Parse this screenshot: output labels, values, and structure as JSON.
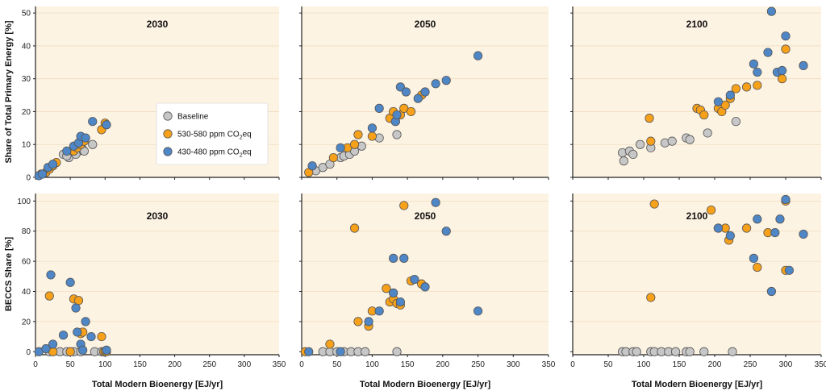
{
  "colors": {
    "panel_bg": "#fdf3e3",
    "gridline": "#f0dcc0",
    "baseline": "#c7c7c7",
    "co2_530_580": "#f7a11a",
    "co2_430_480": "#4f86c6",
    "marker_edge": "#555555"
  },
  "chart_data": {
    "type": "scatter",
    "xlabel": "Total Modern Bioenergy [EJ/yr]",
    "x_ticks": [
      0,
      50,
      100,
      150,
      200,
      250,
      300,
      350
    ],
    "xlim": [
      0,
      350
    ],
    "legend": {
      "entries": [
        {
          "series": "baseline",
          "text": "Baseline"
        },
        {
          "series": "co2_530_580",
          "text": "530-580 ppm CO",
          "sub": "2",
          "suffix": "eq"
        },
        {
          "series": "co2_430_480",
          "text": "430-480 ppm CO",
          "sub": "2",
          "suffix": "eq"
        }
      ]
    },
    "rows": [
      {
        "ylabel": "Share of Total Primary Energy [%]",
        "ylim": [
          0,
          52
        ],
        "y_ticks": [
          0,
          10,
          20,
          30,
          40,
          50
        ]
      },
      {
        "ylabel": "BECCS Share [%]",
        "ylim": [
          -2,
          105
        ],
        "y_ticks": [
          0,
          20,
          40,
          60,
          80,
          100
        ]
      }
    ],
    "panels": [
      {
        "row": 0,
        "col": 0,
        "title": "2030",
        "series": {
          "baseline": [
            [
              40,
              7
            ],
            [
              48,
              6
            ],
            [
              55,
              7.5
            ],
            [
              62,
              8
            ],
            [
              68,
              8.5
            ],
            [
              70,
              8
            ],
            [
              82,
              10
            ],
            [
              58,
              7
            ],
            [
              45,
              6.5
            ]
          ],
          "co2_530_580": [
            [
              8,
              1
            ],
            [
              15,
              1.5
            ],
            [
              20,
              2.5
            ],
            [
              25,
              3.5
            ],
            [
              30,
              4.5
            ],
            [
              55,
              8
            ],
            [
              60,
              9
            ],
            [
              65,
              10
            ],
            [
              70,
              11
            ],
            [
              95,
              14.5
            ],
            [
              100,
              16.5
            ]
          ],
          "co2_430_480": [
            [
              5,
              0.5
            ],
            [
              10,
              1
            ],
            [
              18,
              3
            ],
            [
              25,
              4
            ],
            [
              45,
              8
            ],
            [
              55,
              9.5
            ],
            [
              62,
              10.5
            ],
            [
              65,
              12.5
            ],
            [
              72,
              12
            ],
            [
              82,
              17
            ],
            [
              102,
              16
            ]
          ]
        }
      },
      {
        "row": 0,
        "col": 1,
        "title": "2050",
        "series": {
          "baseline": [
            [
              20,
              2
            ],
            [
              30,
              3
            ],
            [
              40,
              4
            ],
            [
              55,
              6
            ],
            [
              60,
              6.5
            ],
            [
              68,
              7
            ],
            [
              75,
              8
            ],
            [
              85,
              9.5
            ],
            [
              110,
              12
            ],
            [
              135,
              13
            ]
          ],
          "co2_530_580": [
            [
              10,
              1.5
            ],
            [
              45,
              6
            ],
            [
              65,
              9
            ],
            [
              75,
              10
            ],
            [
              80,
              13
            ],
            [
              100,
              12.5
            ],
            [
              125,
              18
            ],
            [
              130,
              20
            ],
            [
              133,
              17
            ],
            [
              140,
              19
            ],
            [
              145,
              21
            ],
            [
              155,
              20
            ],
            [
              170,
              25
            ]
          ],
          "co2_430_480": [
            [
              15,
              3.5
            ],
            [
              55,
              9
            ],
            [
              100,
              15
            ],
            [
              110,
              21
            ],
            [
              133,
              17
            ],
            [
              135,
              19
            ],
            [
              140,
              27.5
            ],
            [
              148,
              26
            ],
            [
              165,
              24
            ],
            [
              175,
              26
            ],
            [
              190,
              28.5
            ],
            [
              205,
              29.5
            ],
            [
              250,
              37
            ]
          ]
        }
      },
      {
        "row": 0,
        "col": 2,
        "title": "2100",
        "series": {
          "baseline": [
            [
              70,
              7.5
            ],
            [
              72,
              5
            ],
            [
              80,
              8
            ],
            [
              85,
              7
            ],
            [
              95,
              10
            ],
            [
              110,
              9
            ],
            [
              130,
              10.5
            ],
            [
              140,
              11
            ],
            [
              160,
              12
            ],
            [
              165,
              11.5
            ],
            [
              190,
              13.5
            ],
            [
              230,
              17
            ]
          ],
          "co2_530_580": [
            [
              108,
              18
            ],
            [
              110,
              11
            ],
            [
              175,
              21
            ],
            [
              180,
              20.5
            ],
            [
              185,
              19
            ],
            [
              205,
              21
            ],
            [
              210,
              20
            ],
            [
              215,
              22
            ],
            [
              222,
              24
            ],
            [
              230,
              27
            ],
            [
              245,
              27.5
            ],
            [
              260,
              28
            ],
            [
              295,
              30
            ],
            [
              300,
              39
            ]
          ],
          "co2_430_480": [
            [
              205,
              23
            ],
            [
              222,
              25
            ],
            [
              255,
              34.5
            ],
            [
              260,
              32
            ],
            [
              275,
              38
            ],
            [
              280,
              50.5
            ],
            [
              288,
              32
            ],
            [
              295,
              32.5
            ],
            [
              300,
              43
            ],
            [
              325,
              34
            ]
          ]
        }
      },
      {
        "row": 1,
        "col": 0,
        "title": "2030",
        "series": {
          "baseline": [
            [
              20,
              0
            ],
            [
              35,
              0
            ],
            [
              45,
              0
            ],
            [
              55,
              0
            ],
            [
              65,
              0
            ],
            [
              85,
              0
            ],
            [
              95,
              0
            ]
          ],
          "co2_530_580": [
            [
              20,
              37
            ],
            [
              25,
              0
            ],
            [
              50,
              0
            ],
            [
              55,
              35
            ],
            [
              62,
              34
            ],
            [
              65,
              12
            ],
            [
              68,
              13
            ],
            [
              95,
              10
            ],
            [
              98,
              0
            ],
            [
              100,
              0
            ],
            [
              102,
              0
            ]
          ],
          "co2_430_480": [
            [
              5,
              0
            ],
            [
              15,
              2
            ],
            [
              22,
              51
            ],
            [
              25,
              5
            ],
            [
              40,
              11
            ],
            [
              50,
              46
            ],
            [
              58,
              29
            ],
            [
              60,
              13
            ],
            [
              65,
              5
            ],
            [
              68,
              1
            ],
            [
              72,
              20
            ],
            [
              80,
              10
            ],
            [
              102,
              1
            ]
          ]
        }
      },
      {
        "row": 1,
        "col": 1,
        "title": "2050",
        "series": {
          "baseline": [
            [
              30,
              0
            ],
            [
              40,
              0
            ],
            [
              50,
              0
            ],
            [
              60,
              0
            ],
            [
              70,
              0
            ],
            [
              80,
              0
            ],
            [
              90,
              0
            ],
            [
              135,
              0
            ]
          ],
          "co2_530_580": [
            [
              5,
              0
            ],
            [
              40,
              5
            ],
            [
              75,
              82
            ],
            [
              80,
              20
            ],
            [
              95,
              17
            ],
            [
              100,
              27
            ],
            [
              120,
              42
            ],
            [
              125,
              33
            ],
            [
              130,
              35
            ],
            [
              135,
              32
            ],
            [
              140,
              31
            ],
            [
              145,
              97
            ],
            [
              155,
              47
            ],
            [
              170,
              45
            ]
          ],
          "co2_430_480": [
            [
              10,
              0
            ],
            [
              55,
              0
            ],
            [
              95,
              20
            ],
            [
              110,
              27
            ],
            [
              130,
              39
            ],
            [
              130,
              62
            ],
            [
              140,
              33
            ],
            [
              145,
              62
            ],
            [
              160,
              48
            ],
            [
              175,
              43
            ],
            [
              190,
              99
            ],
            [
              205,
              80
            ],
            [
              250,
              27
            ]
          ]
        }
      },
      {
        "row": 1,
        "col": 2,
        "title": "2100",
        "series": {
          "baseline": [
            [
              70,
              0
            ],
            [
              75,
              0
            ],
            [
              85,
              0
            ],
            [
              90,
              0
            ],
            [
              110,
              0
            ],
            [
              115,
              0
            ],
            [
              125,
              0
            ],
            [
              135,
              0
            ],
            [
              145,
              0
            ],
            [
              160,
              0
            ],
            [
              165,
              0
            ],
            [
              185,
              0
            ],
            [
              225,
              0
            ]
          ],
          "co2_530_580": [
            [
              110,
              36
            ],
            [
              115,
              98
            ],
            [
              195,
              94
            ],
            [
              205,
              82
            ],
            [
              215,
              82
            ],
            [
              220,
              74
            ],
            [
              245,
              82
            ],
            [
              260,
              56
            ],
            [
              275,
              79
            ],
            [
              300,
              54
            ],
            [
              300,
              100
            ]
          ],
          "co2_430_480": [
            [
              205,
              82
            ],
            [
              222,
              77
            ],
            [
              255,
              62
            ],
            [
              260,
              88
            ],
            [
              280,
              40
            ],
            [
              285,
              79
            ],
            [
              292,
              88
            ],
            [
              300,
              101
            ],
            [
              305,
              54
            ],
            [
              325,
              78
            ]
          ]
        }
      }
    ]
  }
}
